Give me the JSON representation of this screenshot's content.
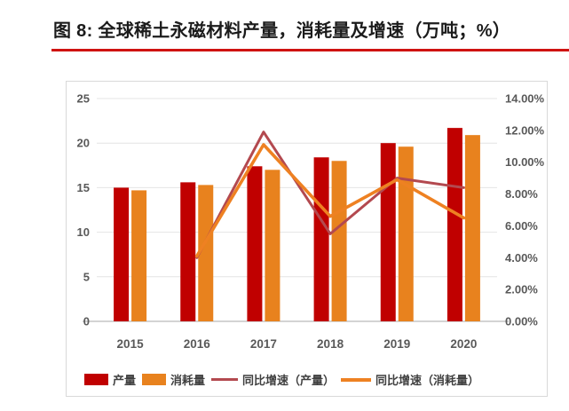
{
  "figure": {
    "title": "图 8: 全球稀土永磁材料产量，消耗量及增速（万吨；%）"
  },
  "colors": {
    "title_text": "#1b1b1b",
    "title_underline": "#cf1311",
    "bar_production": "#c00000",
    "bar_consumption": "#e8821e",
    "line_production_growth": "#b3494f",
    "line_consumption_growth": "#ee8122",
    "axis_text": "#595959",
    "gridline": "#e4e4e4",
    "axis_line": "#c6c6c6",
    "frame_border": "#d9d9d9"
  },
  "chart_data": {
    "type": "combo: grouped bar (left axis) + line (right axis)",
    "title": "图 8: 全球稀土永磁材料产量，消耗量及增速（万吨；%）",
    "categories": [
      "2015",
      "2016",
      "2017",
      "2018",
      "2019",
      "2020"
    ],
    "series": [
      {
        "name": "产量",
        "slug": "production",
        "type": "bar",
        "axis": "left",
        "unit": "万吨",
        "color": "#c00000",
        "values": [
          15.0,
          15.6,
          17.4,
          18.4,
          20.0,
          21.7
        ]
      },
      {
        "name": "消耗量",
        "slug": "consumption",
        "type": "bar",
        "axis": "left",
        "unit": "万吨",
        "color": "#e8821e",
        "values": [
          14.7,
          15.3,
          17.0,
          18.0,
          19.6,
          20.9
        ]
      },
      {
        "name": "同比增速（产量）",
        "slug": "production-growth",
        "type": "line",
        "axis": "right",
        "unit": "%",
        "color": "#b3494f",
        "values": [
          null,
          4.0,
          11.9,
          5.5,
          9.0,
          8.4
        ]
      },
      {
        "name": "同比增速（消耗量）",
        "slug": "consumption-growth",
        "type": "line",
        "axis": "right",
        "unit": "%",
        "color": "#ee8122",
        "values": [
          null,
          4.1,
          11.1,
          6.6,
          8.9,
          6.5
        ]
      }
    ],
    "left_axis": {
      "min": 0,
      "max": 25,
      "ticks": [
        0,
        5,
        10,
        15,
        20,
        25
      ]
    },
    "right_axis": {
      "min": 0,
      "max": 14,
      "tick_values": [
        0,
        2,
        4,
        6,
        8,
        10,
        12,
        14
      ],
      "tick_labels": [
        "0.00%",
        "2.00%",
        "4.00%",
        "6.00%",
        "8.00%",
        "10.00%",
        "12.00%",
        "14.00%"
      ]
    },
    "grid": true,
    "legend_position": "bottom",
    "legend": [
      "产量",
      "消耗量",
      "同比增速（产量）",
      "同比增速（消耗量）"
    ]
  }
}
